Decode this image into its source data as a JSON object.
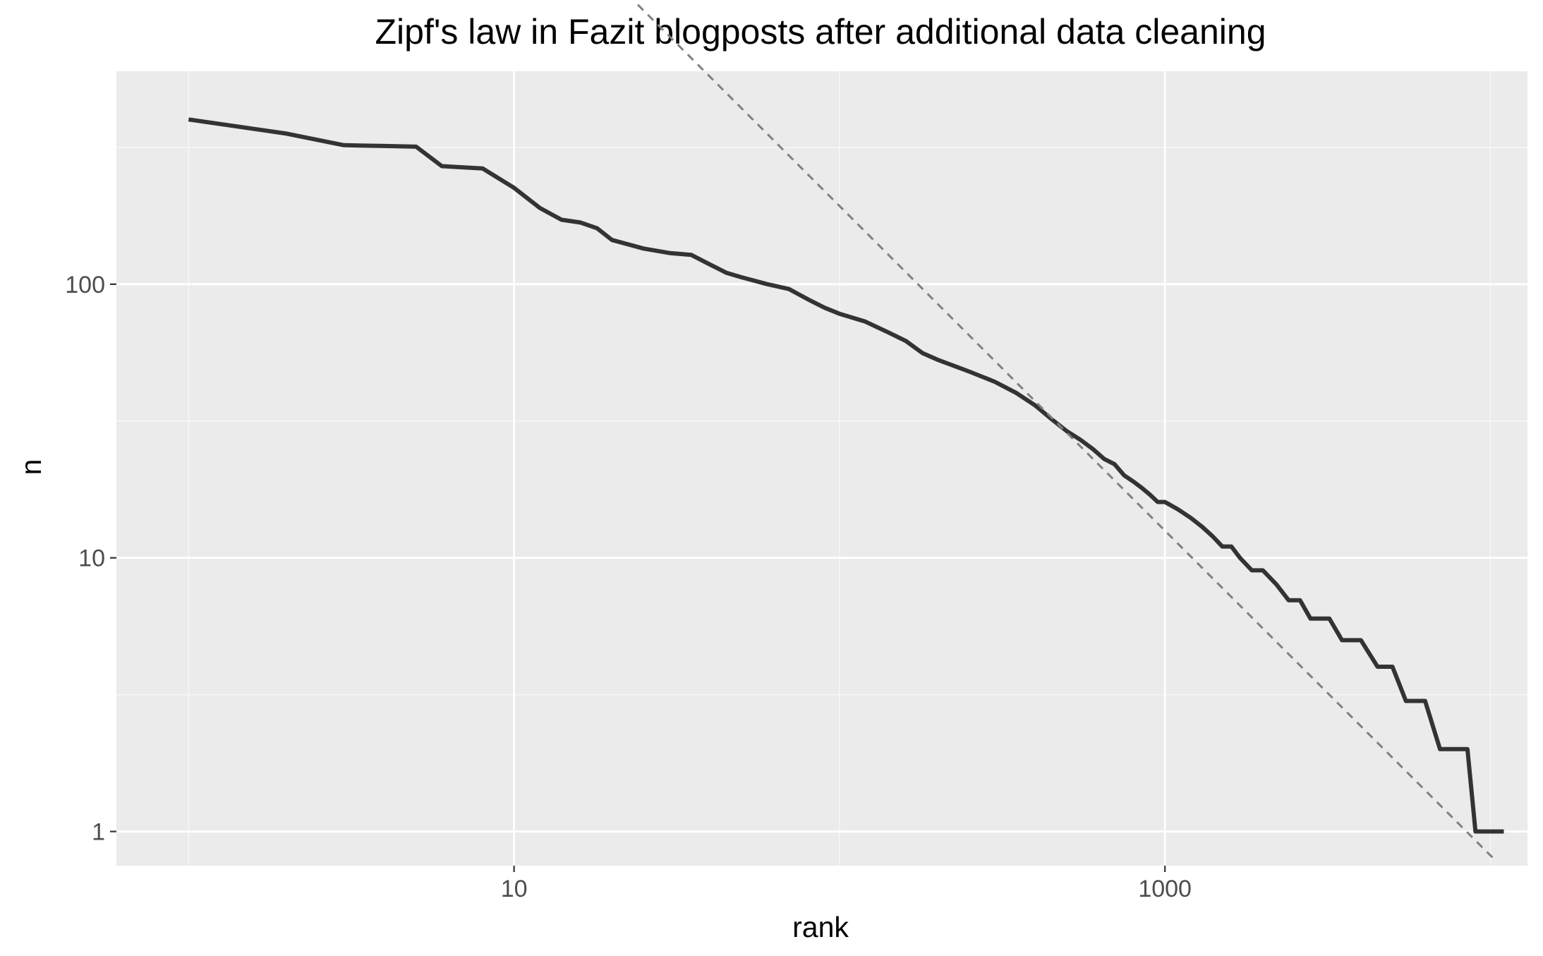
{
  "chart_data": {
    "type": "line",
    "title": "Zipf's law in Fazit blogposts after additional data cleaning",
    "xlabel": "rank",
    "ylabel": "n",
    "x_scale": "log10",
    "y_scale": "log10",
    "xlim": [
      0.6,
      13000
    ],
    "ylim": [
      0.75,
      600
    ],
    "x_ticks": [
      {
        "value": 10,
        "label": "10"
      },
      {
        "value": 1000,
        "label": "1000"
      }
    ],
    "y_ticks": [
      {
        "value": 1,
        "label": "1"
      },
      {
        "value": 10,
        "label": "10"
      },
      {
        "value": 100,
        "label": "100"
      }
    ],
    "x_minor_gridlines": [
      1,
      100,
      10000
    ],
    "y_minor_gridlines": [
      3.16,
      31.6,
      316
    ],
    "grid": true,
    "legend": "none",
    "colors": {
      "panel_background": "#ebebeb",
      "grid_major": "#ffffff",
      "grid_minor": "#f7f7f7",
      "line": "#333333",
      "fit_line": "#808080"
    },
    "series": [
      {
        "style": "solid",
        "x": [
          1,
          2,
          3,
          4,
          5,
          6,
          8,
          10,
          12,
          14,
          16,
          18,
          20,
          25,
          30,
          35,
          40,
          45,
          50,
          60,
          70,
          80,
          90,
          100,
          120,
          140,
          160,
          180,
          200,
          250,
          300,
          350,
          400,
          450,
          500,
          550,
          600,
          650,
          700,
          750,
          800,
          850,
          900,
          950,
          1000,
          1100,
          1200,
          1300,
          1400,
          1500,
          1600,
          1700,
          1850,
          2000,
          2200,
          2400,
          2600,
          2800,
          3200,
          3500,
          4000,
          4500,
          5000,
          5500,
          6300,
          7000,
          8500,
          9000,
          11000
        ],
        "y": [
          400,
          355,
          322,
          320,
          318,
          270,
          265,
          225,
          190,
          172,
          168,
          160,
          145,
          135,
          130,
          128,
          118,
          110,
          106,
          100,
          96,
          88,
          82,
          78,
          73,
          67,
          62,
          56,
          53,
          48,
          44,
          40,
          36,
          32,
          29,
          27,
          25,
          23,
          22,
          20,
          19,
          18,
          17,
          16,
          16,
          15,
          14,
          13,
          12,
          11,
          11,
          10,
          9,
          9,
          8,
          7,
          7,
          6,
          6,
          5,
          5,
          4,
          4,
          3,
          3,
          2,
          2,
          1,
          1
        ]
      },
      {
        "style": "dashed",
        "x": [
          24,
          10300
        ],
        "y": [
          1050,
          0.79
        ]
      }
    ]
  }
}
